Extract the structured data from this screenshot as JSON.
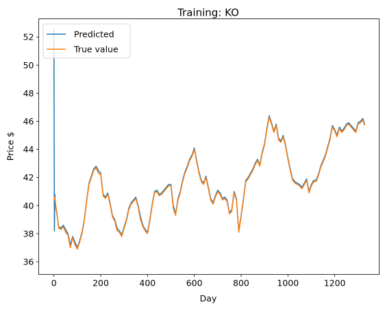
{
  "chart_data": {
    "type": "line",
    "title": "Training: KO",
    "xlabel": "Day",
    "ylabel": "Price $",
    "xlim": [
      -65,
      1390
    ],
    "ylim": [
      35.1,
      53.3
    ],
    "xticks": [
      0,
      200,
      400,
      600,
      800,
      1000,
      1200
    ],
    "yticks": [
      36,
      38,
      40,
      42,
      44,
      46,
      48,
      50,
      52
    ],
    "grid": false,
    "legend_position": "top-left",
    "series": [
      {
        "name": "Predicted",
        "color": "#1f77b4",
        "x": [
          0,
          2,
          4,
          6,
          8,
          12,
          20,
          30,
          40,
          50,
          60,
          70,
          80,
          90,
          100,
          110,
          120,
          130,
          140,
          150,
          160,
          170,
          180,
          190,
          200,
          210,
          220,
          230,
          240,
          250,
          260,
          270,
          280,
          290,
          300,
          310,
          320,
          330,
          340,
          350,
          360,
          370,
          380,
          390,
          400,
          410,
          420,
          430,
          440,
          450,
          460,
          470,
          480,
          490,
          500,
          510,
          520,
          530,
          540,
          550,
          560,
          570,
          580,
          590,
          600,
          610,
          620,
          630,
          640,
          650,
          660,
          670,
          680,
          690,
          700,
          710,
          720,
          730,
          740,
          750,
          760,
          770,
          780,
          790,
          800,
          810,
          820,
          830,
          840,
          850,
          860,
          870,
          880,
          890,
          900,
          910,
          920,
          930,
          940,
          950,
          960,
          970,
          980,
          990,
          1000,
          1010,
          1020,
          1030,
          1040,
          1050,
          1060,
          1070,
          1080,
          1090,
          1100,
          1110,
          1120,
          1130,
          1140,
          1150,
          1160,
          1170,
          1180,
          1190,
          1200,
          1210,
          1220,
          1230,
          1240,
          1250,
          1260,
          1270,
          1280,
          1290,
          1300,
          1310,
          1320,
          1328
        ],
        "y": [
          52.6,
          38.2,
          40.8,
          40.3,
          39.9,
          39.5,
          38.5,
          38.4,
          38.6,
          38.3,
          38.0,
          37.2,
          37.8,
          37.4,
          37.0,
          37.5,
          38.1,
          39.0,
          40.4,
          41.6,
          42.1,
          42.6,
          42.8,
          42.5,
          42.3,
          40.8,
          40.6,
          40.9,
          40.2,
          39.3,
          39.0,
          38.4,
          38.2,
          37.9,
          38.5,
          39.0,
          39.8,
          40.2,
          40.4,
          40.6,
          40.0,
          39.2,
          38.6,
          38.3,
          38.1,
          39.0,
          40.1,
          41.0,
          41.1,
          40.8,
          40.9,
          41.1,
          41.3,
          41.5,
          41.5,
          40.0,
          39.4,
          40.5,
          41.0,
          41.8,
          42.4,
          42.8,
          43.3,
          43.6,
          44.1,
          43.2,
          42.4,
          41.8,
          41.6,
          42.1,
          41.3,
          40.5,
          40.2,
          40.7,
          41.1,
          40.9,
          40.5,
          40.6,
          40.4,
          39.5,
          39.7,
          41.0,
          40.5,
          38.2,
          39.3,
          40.5,
          41.8,
          42.0,
          42.3,
          42.6,
          43.0,
          43.3,
          42.9,
          43.8,
          44.4,
          45.5,
          46.4,
          45.9,
          45.3,
          45.8,
          44.8,
          44.6,
          45.0,
          44.3,
          43.4,
          42.6,
          41.9,
          41.7,
          41.6,
          41.5,
          41.3,
          41.6,
          41.9,
          41.0,
          41.5,
          41.8,
          41.8,
          42.2,
          42.8,
          43.2,
          43.6,
          44.2,
          44.8,
          45.7,
          45.4,
          45.0,
          45.6,
          45.3,
          45.5,
          45.8,
          45.9,
          45.7,
          45.5,
          45.3,
          45.9,
          46.0,
          46.2,
          45.8
        ]
      },
      {
        "name": "True value",
        "color": "#ff7f0e",
        "x": [
          0,
          4,
          8,
          12,
          20,
          30,
          40,
          50,
          60,
          70,
          80,
          90,
          100,
          110,
          120,
          130,
          140,
          150,
          160,
          170,
          180,
          190,
          200,
          210,
          220,
          230,
          240,
          250,
          260,
          270,
          280,
          290,
          300,
          310,
          320,
          330,
          340,
          350,
          360,
          370,
          380,
          390,
          400,
          410,
          420,
          430,
          440,
          450,
          460,
          470,
          480,
          490,
          500,
          510,
          520,
          530,
          540,
          550,
          560,
          570,
          580,
          590,
          600,
          610,
          620,
          630,
          640,
          650,
          660,
          670,
          680,
          690,
          700,
          710,
          720,
          730,
          740,
          750,
          760,
          770,
          780,
          790,
          800,
          810,
          820,
          830,
          840,
          850,
          860,
          870,
          880,
          890,
          900,
          910,
          920,
          930,
          940,
          950,
          960,
          970,
          980,
          990,
          1000,
          1010,
          1020,
          1030,
          1040,
          1050,
          1060,
          1070,
          1080,
          1090,
          1100,
          1110,
          1120,
          1130,
          1140,
          1150,
          1160,
          1170,
          1180,
          1190,
          1200,
          1210,
          1220,
          1230,
          1240,
          1250,
          1260,
          1270,
          1280,
          1290,
          1300,
          1310,
          1320,
          1328
        ],
        "y": [
          40.4,
          40.6,
          40.0,
          39.6,
          38.4,
          38.3,
          38.5,
          38.1,
          37.9,
          37.0,
          37.7,
          37.2,
          36.9,
          37.4,
          38.0,
          38.9,
          40.3,
          41.5,
          42.0,
          42.5,
          42.7,
          42.3,
          42.2,
          40.7,
          40.5,
          40.8,
          40.1,
          39.2,
          38.9,
          38.2,
          38.1,
          37.8,
          38.4,
          38.9,
          39.7,
          40.1,
          40.3,
          40.5,
          39.9,
          39.0,
          38.5,
          38.2,
          38.0,
          38.9,
          40.0,
          40.9,
          41.0,
          40.7,
          40.8,
          41.0,
          41.2,
          41.4,
          41.4,
          39.8,
          39.3,
          40.4,
          40.9,
          41.7,
          42.3,
          42.7,
          43.2,
          43.5,
          44.0,
          43.1,
          42.3,
          41.7,
          41.5,
          42.0,
          41.2,
          40.4,
          40.1,
          40.6,
          41.0,
          40.8,
          40.4,
          40.5,
          40.3,
          39.4,
          39.6,
          40.9,
          40.4,
          38.1,
          39.2,
          40.4,
          41.7,
          41.9,
          42.2,
          42.5,
          42.9,
          43.2,
          42.8,
          43.7,
          44.3,
          45.4,
          46.3,
          45.8,
          45.2,
          45.7,
          44.7,
          44.5,
          44.9,
          44.2,
          43.3,
          42.5,
          41.8,
          41.6,
          41.5,
          41.4,
          41.2,
          41.5,
          41.8,
          40.9,
          41.4,
          41.7,
          41.7,
          42.1,
          42.7,
          43.1,
          43.5,
          44.1,
          44.7,
          45.6,
          45.3,
          44.9,
          45.5,
          45.2,
          45.4,
          45.7,
          45.8,
          45.6,
          45.4,
          45.2,
          45.8,
          45.9,
          46.1,
          45.7
        ]
      }
    ]
  }
}
